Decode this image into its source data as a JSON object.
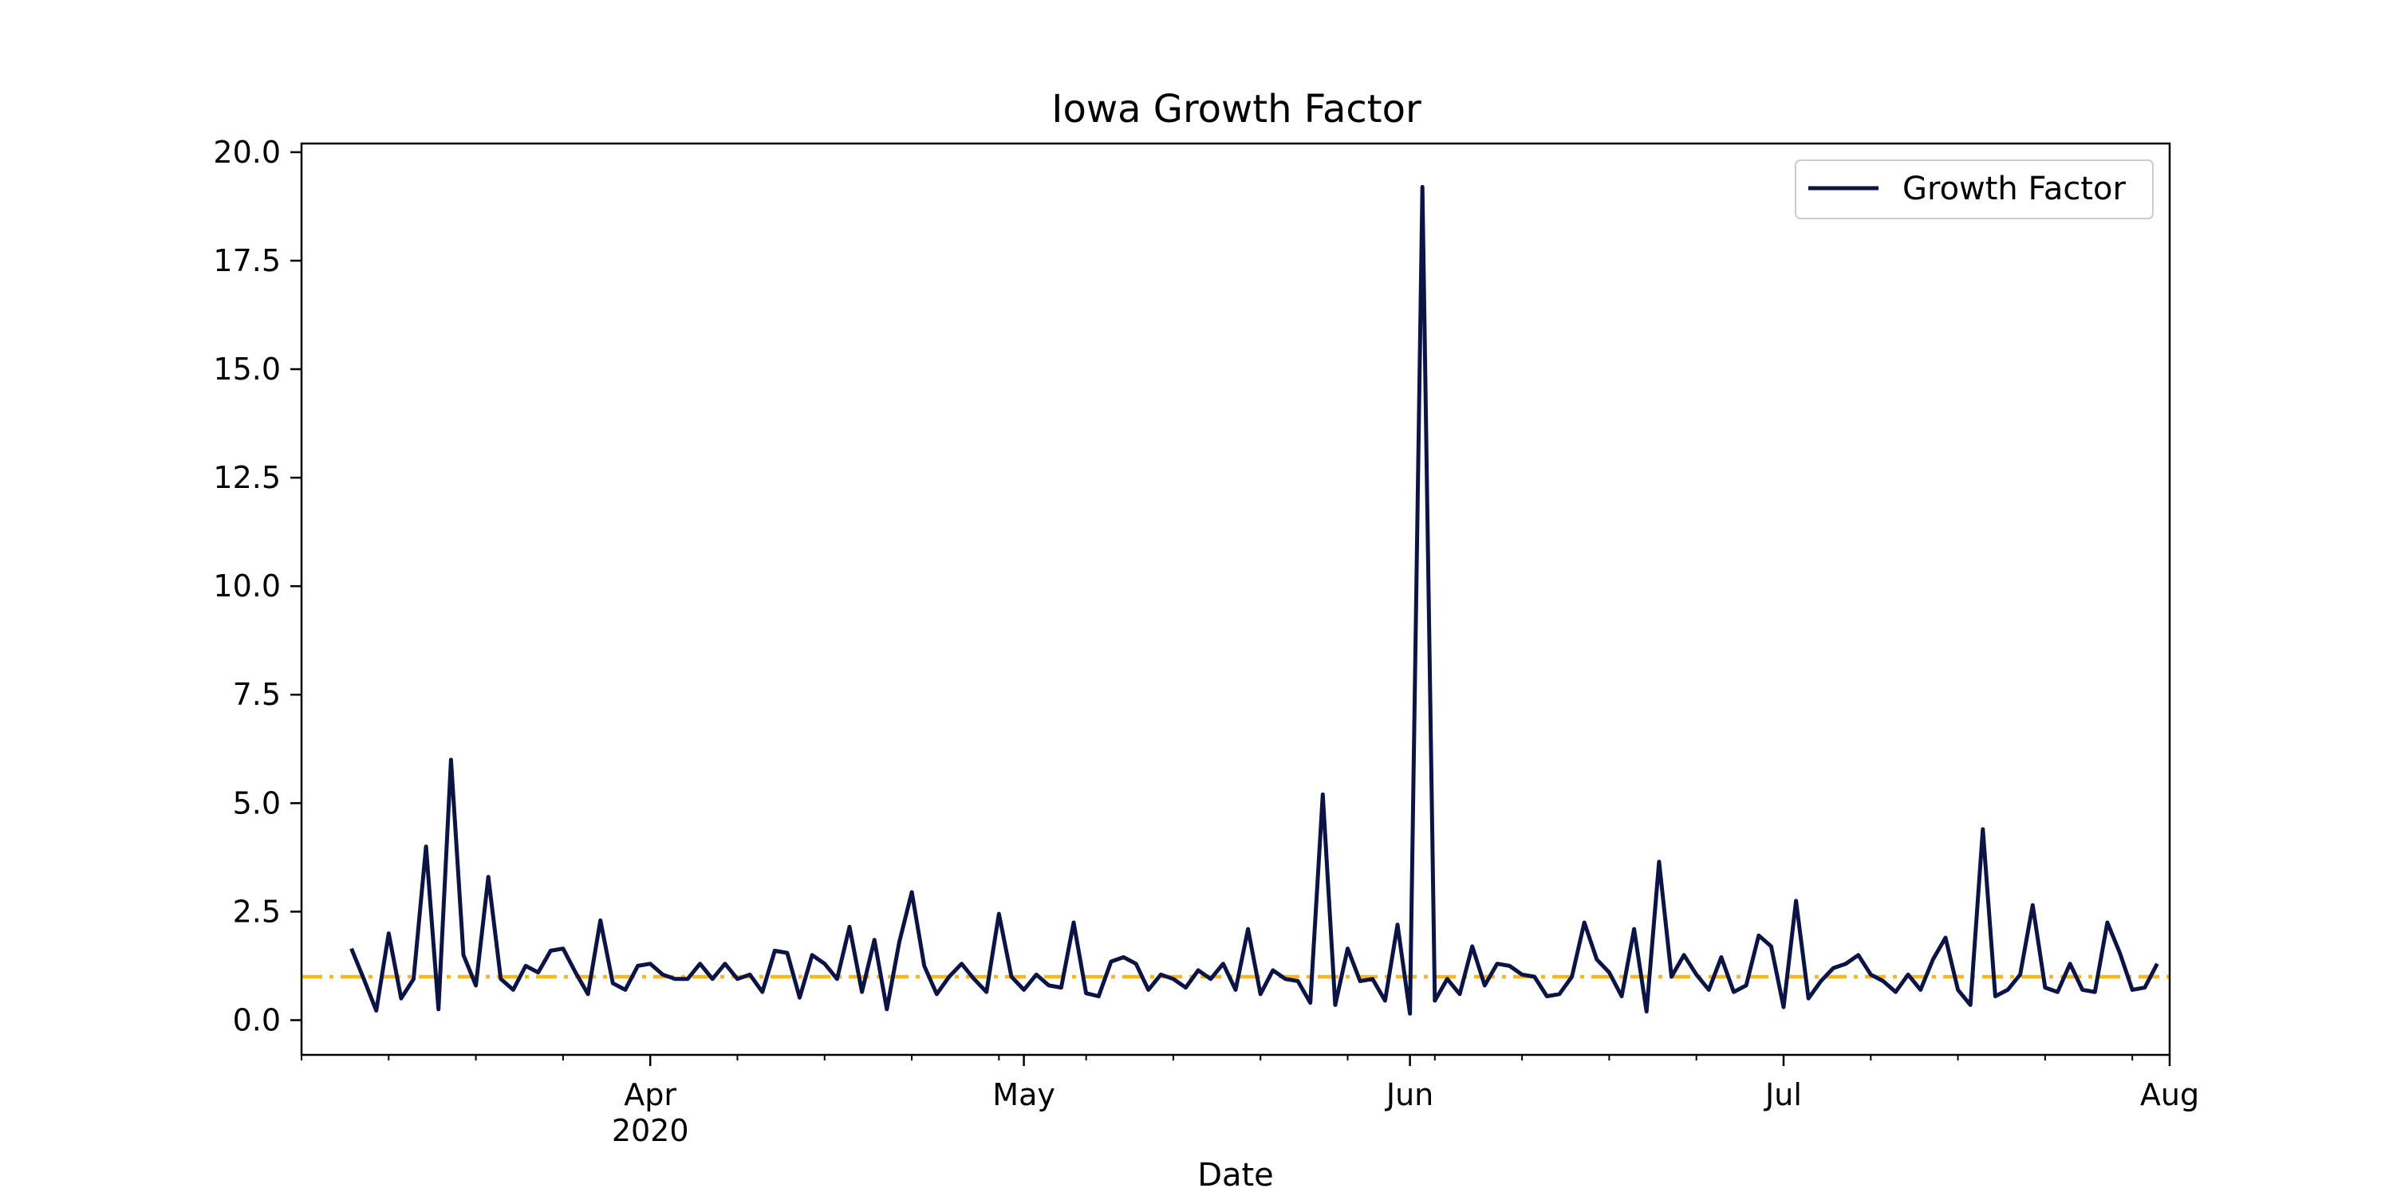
{
  "chart_data": {
    "type": "line",
    "title": "Iowa Growth Factor",
    "xlabel": "Date",
    "ylabel": "",
    "x_axis": {
      "type": "date",
      "range": [
        "2020-03-04",
        "2020-08-01"
      ],
      "ticks": [
        {
          "date": "2020-04-01",
          "label": "Apr",
          "sublabel": "2020"
        },
        {
          "date": "2020-05-01",
          "label": "May",
          "sublabel": ""
        },
        {
          "date": "2020-06-01",
          "label": "Jun",
          "sublabel": ""
        },
        {
          "date": "2020-07-01",
          "label": "Jul",
          "sublabel": ""
        },
        {
          "date": "2020-08-01",
          "label": "Aug",
          "sublabel": ""
        }
      ]
    },
    "y_axis": {
      "range": [
        -0.8,
        20.2
      ],
      "ticks": [
        {
          "value": 0,
          "label": "0.0"
        },
        {
          "value": 2.5,
          "label": "2.5"
        },
        {
          "value": 5,
          "label": "5.0"
        },
        {
          "value": 7.5,
          "label": "7.5"
        },
        {
          "value": 10,
          "label": "10.0"
        },
        {
          "value": 12.5,
          "label": "12.5"
        },
        {
          "value": 15,
          "label": "15.0"
        },
        {
          "value": 17.5,
          "label": "17.5"
        },
        {
          "value": 20,
          "label": "20.0"
        }
      ]
    },
    "grid": false,
    "legend": {
      "placement": "top-right"
    },
    "series": [
      {
        "name": "Growth Factor",
        "color": "#0b1444",
        "x_start": "2020-03-08",
        "x_step_days": 1,
        "values": [
          1.65,
          0.95,
          0.22,
          2.0,
          0.5,
          0.95,
          4.0,
          0.25,
          6.0,
          1.5,
          0.8,
          3.3,
          0.95,
          0.7,
          1.25,
          1.1,
          1.6,
          1.65,
          1.1,
          0.6,
          2.3,
          0.85,
          0.7,
          1.25,
          1.3,
          1.05,
          0.95,
          0.95,
          1.3,
          0.95,
          1.3,
          0.95,
          1.05,
          0.65,
          1.6,
          1.55,
          0.52,
          1.5,
          1.3,
          0.95,
          2.15,
          0.65,
          1.85,
          0.25,
          1.8,
          2.95,
          1.25,
          0.6,
          1.0,
          1.3,
          0.95,
          0.65,
          2.45,
          1.0,
          0.7,
          1.05,
          0.8,
          0.75,
          2.25,
          0.62,
          0.55,
          1.35,
          1.45,
          1.3,
          0.7,
          1.05,
          0.95,
          0.75,
          1.15,
          0.95,
          1.3,
          0.7,
          2.1,
          0.6,
          1.15,
          0.95,
          0.9,
          0.4,
          5.2,
          0.35,
          1.65,
          0.9,
          0.95,
          0.45,
          2.2,
          0.15,
          19.2,
          0.45,
          0.95,
          0.6,
          1.7,
          0.8,
          1.3,
          1.25,
          1.05,
          1.0,
          0.55,
          0.6,
          1.0,
          2.25,
          1.4,
          1.1,
          0.55,
          2.1,
          0.2,
          3.65,
          1.0,
          1.5,
          1.05,
          0.7,
          1.45,
          0.65,
          0.8,
          1.95,
          1.7,
          0.3,
          2.75,
          0.5,
          0.9,
          1.2,
          1.3,
          1.5,
          1.05,
          0.9,
          0.65,
          1.05,
          0.7,
          1.4,
          1.9,
          0.7,
          0.35,
          4.4,
          0.55,
          0.7,
          1.05,
          2.65,
          0.75,
          0.65,
          1.3,
          0.7,
          0.65,
          2.25,
          1.55,
          0.7,
          0.75,
          1.3
        ]
      },
      {
        "name": "",
        "color": "#f9b524",
        "style": "dash-dot",
        "reference_value": 1.0
      }
    ]
  }
}
